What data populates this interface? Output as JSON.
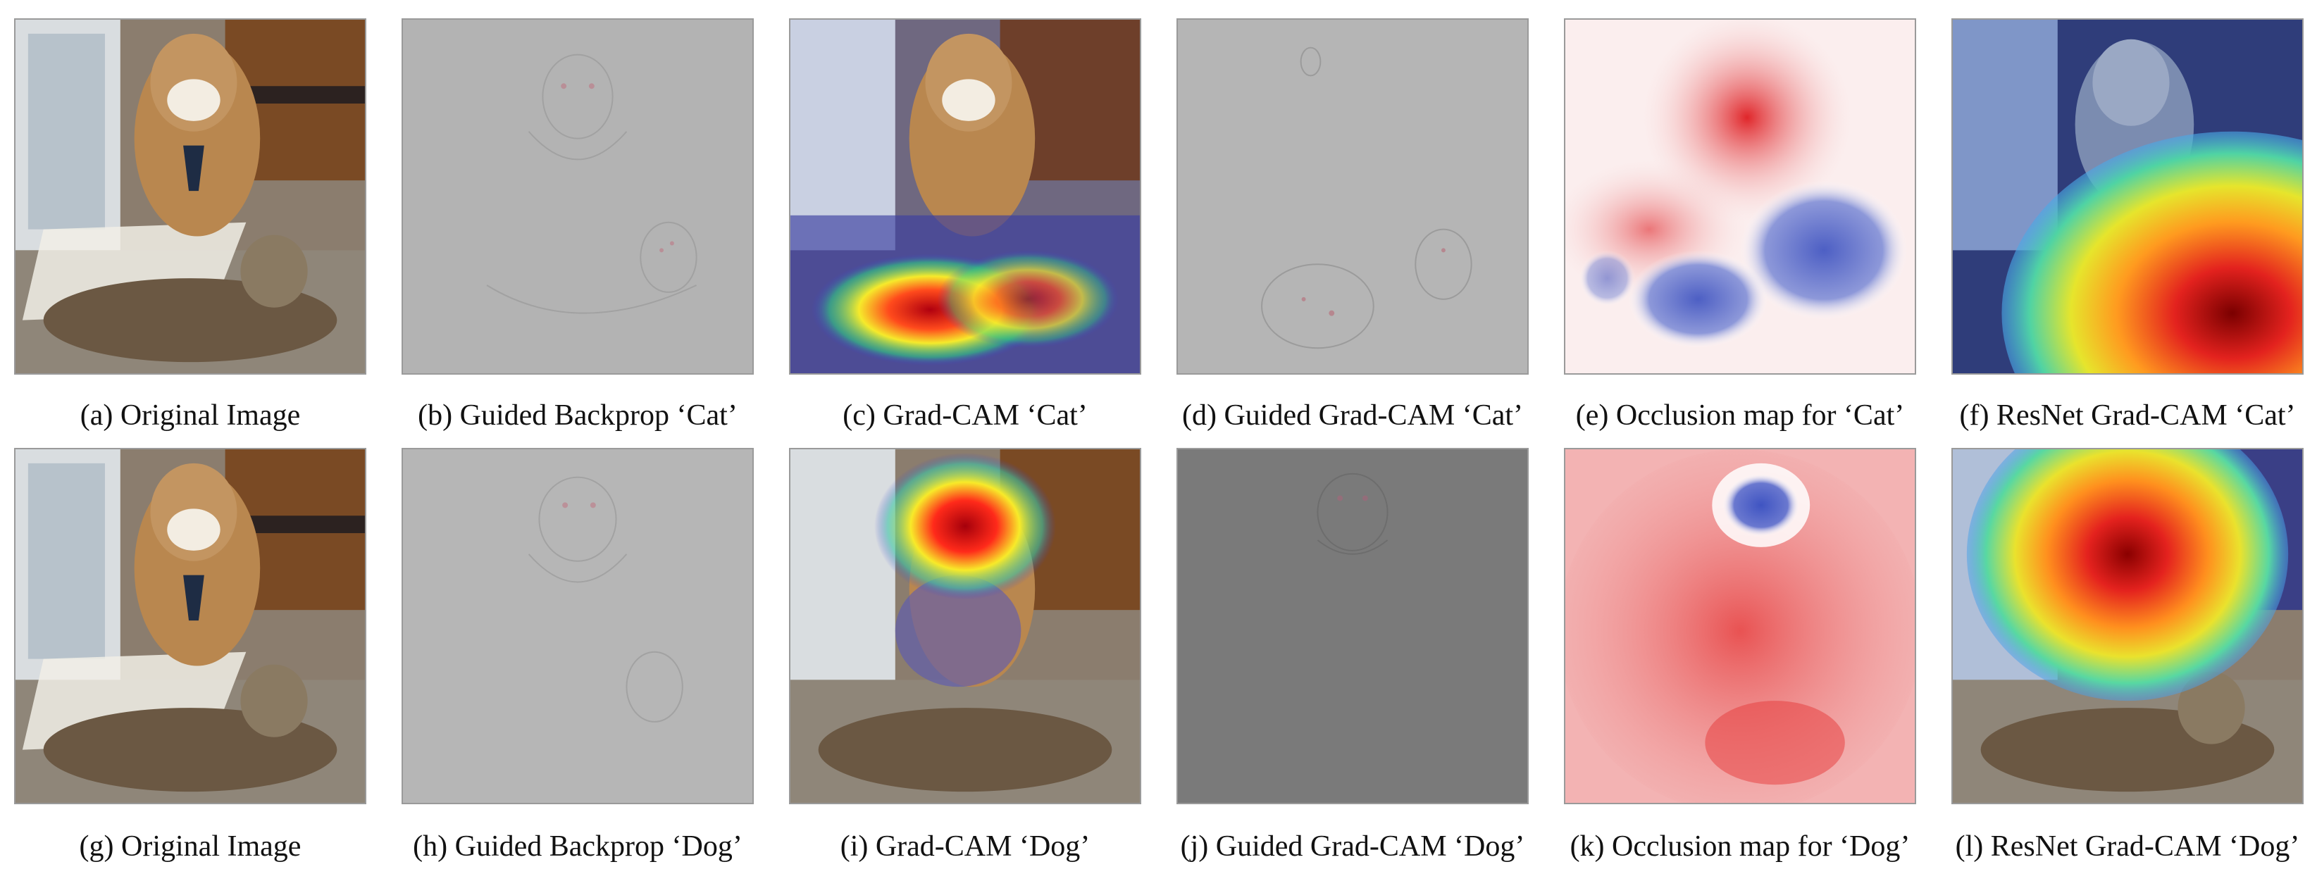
{
  "panels": [
    {
      "caption": "(a) Original Image",
      "type": "photo",
      "heat": "none"
    },
    {
      "caption": "(b) Guided Backprop ‘Cat’",
      "type": "gray-light",
      "heat": "none"
    },
    {
      "caption": "(c) Grad-CAM ‘Cat’",
      "type": "photo",
      "heat": "cat-gradcam"
    },
    {
      "caption": "(d) Guided Grad-CAM ‘Cat’",
      "type": "gray-light",
      "heat": "none"
    },
    {
      "caption": "(e) Occlusion map for ‘Cat’",
      "type": "occlusion-cat",
      "heat": "none"
    },
    {
      "caption": "(f) ResNet Grad-CAM ‘Cat’",
      "type": "photo",
      "heat": "cat-resnet"
    },
    {
      "caption": "(g) Original Image",
      "type": "photo",
      "heat": "none"
    },
    {
      "caption": "(h) Guided Backprop ‘Dog’",
      "type": "gray-light",
      "heat": "none"
    },
    {
      "caption": "(i) Grad-CAM ‘Dog’",
      "type": "photo",
      "heat": "dog-gradcam"
    },
    {
      "caption": "(j) Guided Grad-CAM ‘Dog’",
      "type": "gray-dark",
      "heat": "none"
    },
    {
      "caption": "(k) Occlusion map for ‘Dog’",
      "type": "occlusion-dog",
      "heat": "none"
    },
    {
      "caption": "(l) ResNet Grad-CAM ‘Dog’",
      "type": "photo",
      "heat": "dog-resnet"
    }
  ]
}
